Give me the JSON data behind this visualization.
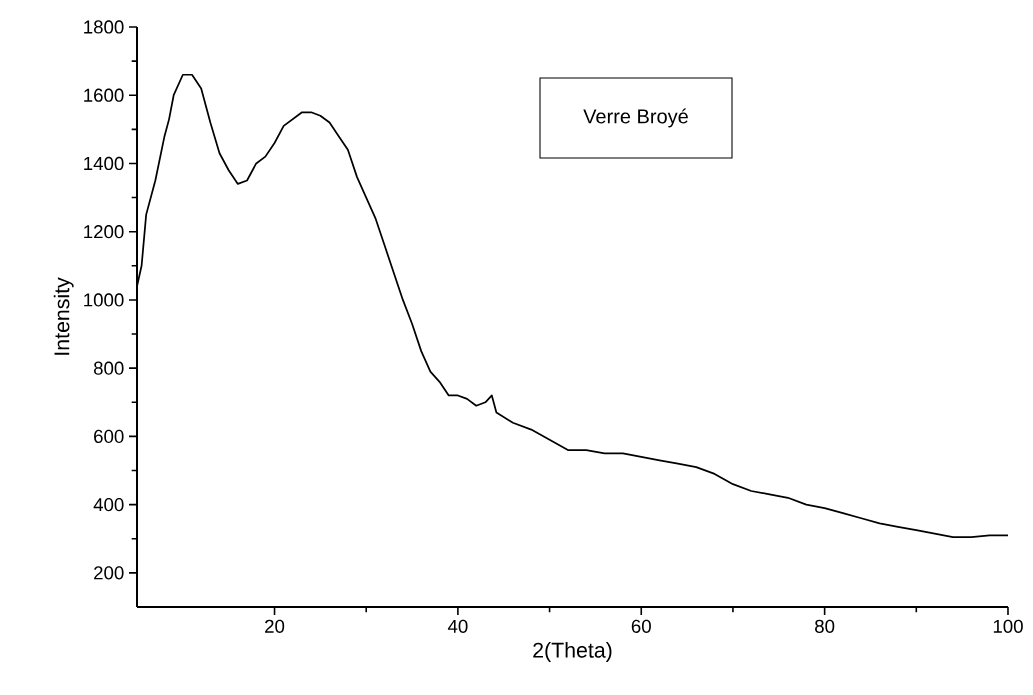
{
  "chart_data": {
    "type": "line",
    "xlabel": "2(Theta)",
    "ylabel": "Intensity",
    "annotations": [
      "Verre Broyé"
    ],
    "xlim": [
      5,
      100
    ],
    "xticks": [
      20,
      40,
      60,
      80,
      100
    ],
    "ylim": [
      100,
      1800
    ],
    "yticks": [
      200,
      400,
      600,
      800,
      1000,
      1200,
      1400,
      1600,
      1800
    ],
    "grid": false,
    "marker": "none",
    "line_style": "solid",
    "series": [
      {
        "color": "#000000",
        "x": [
          5,
          5.5,
          6,
          7,
          8,
          8.5,
          9,
          10,
          11,
          12,
          13,
          14,
          15,
          16,
          17,
          18,
          19,
          20,
          21,
          22,
          23,
          24,
          25,
          26,
          27,
          28,
          29,
          30,
          31,
          32,
          33,
          34,
          35,
          36,
          37,
          38,
          39,
          40,
          41,
          42,
          43,
          43.7,
          44.2,
          46,
          48,
          50,
          52,
          54,
          56,
          58,
          60,
          62,
          64,
          66,
          68,
          70,
          72,
          74,
          76,
          78,
          80,
          82,
          84,
          86,
          88,
          90,
          92,
          94,
          96,
          98,
          100
        ],
        "values": [
          1040,
          1100,
          1250,
          1350,
          1480,
          1530,
          1600,
          1660,
          1660,
          1620,
          1520,
          1430,
          1380,
          1340,
          1350,
          1400,
          1420,
          1460,
          1510,
          1530,
          1550,
          1550,
          1540,
          1520,
          1480,
          1440,
          1360,
          1300,
          1240,
          1160,
          1080,
          1000,
          930,
          850,
          790,
          760,
          720,
          720,
          710,
          690,
          700,
          720,
          670,
          640,
          620,
          590,
          560,
          560,
          550,
          550,
          540,
          530,
          520,
          510,
          490,
          460,
          440,
          430,
          420,
          400,
          390,
          375,
          360,
          345,
          335,
          325,
          315,
          305,
          305,
          310,
          310
        ]
      }
    ]
  }
}
